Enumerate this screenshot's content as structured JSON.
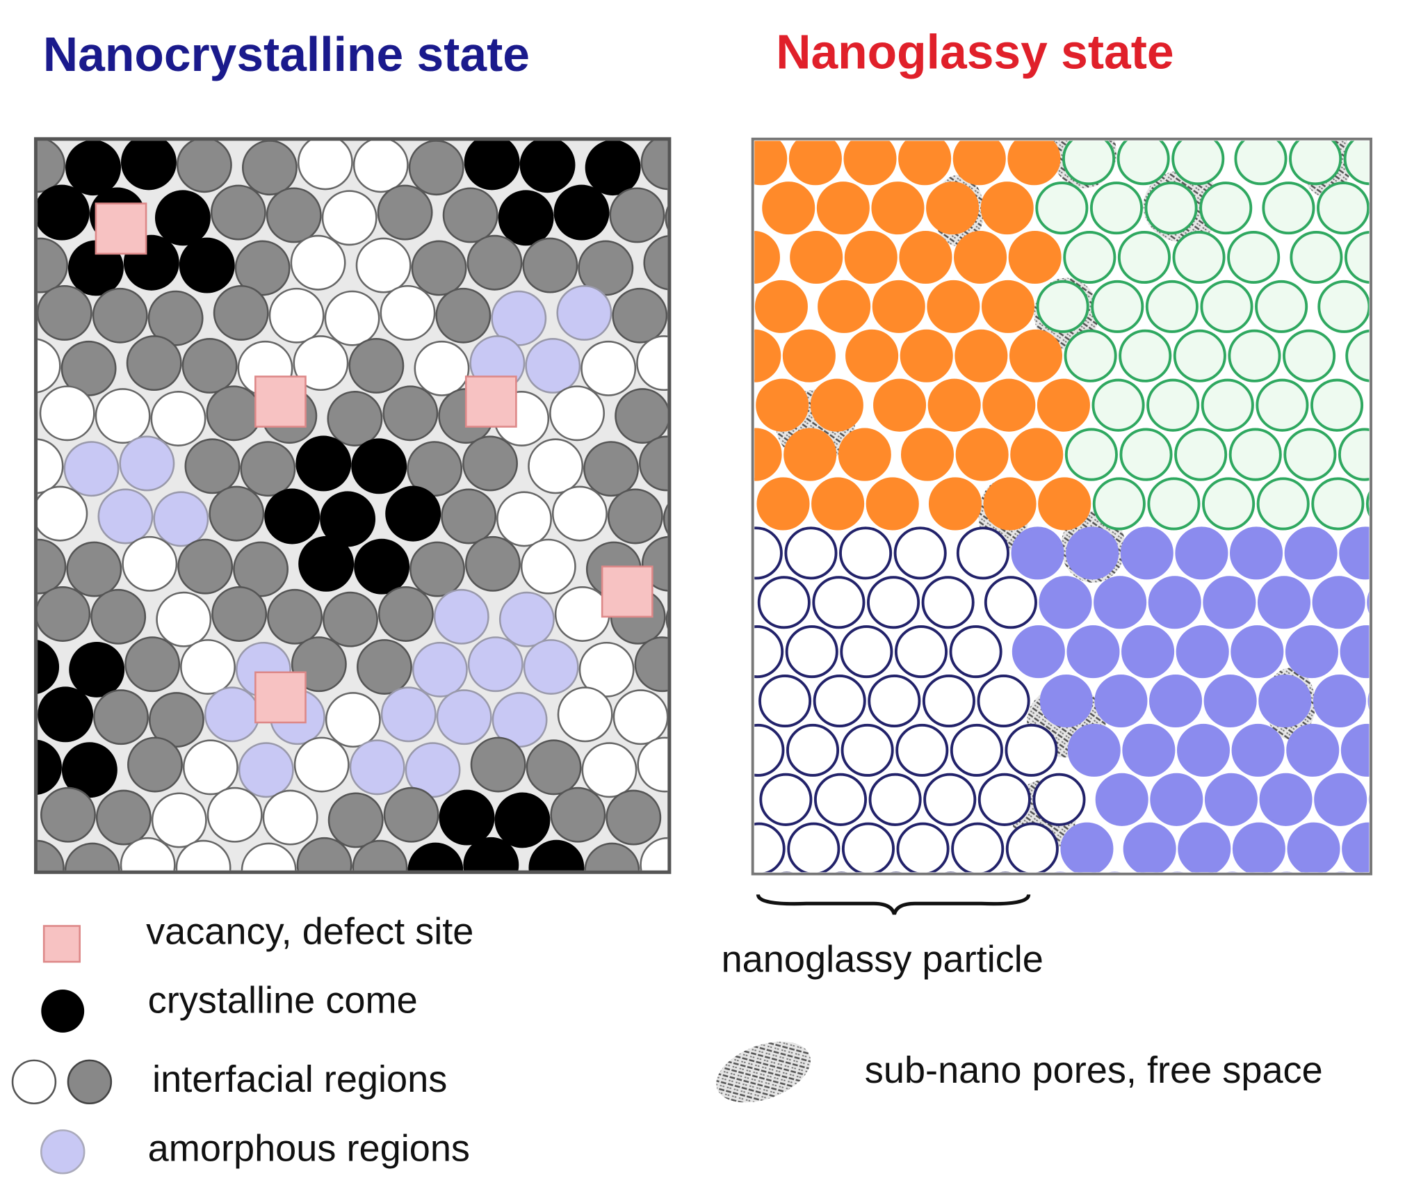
{
  "panels": [
    {
      "title": "Nanocrystalline state"
    },
    {
      "title": "Nanoglassy state"
    }
  ],
  "legend_left": [
    "vacancy, defect site",
    "crystalline come",
    "interfacial regions",
    "amorphous regions"
  ],
  "legend_right": [
    "nanoglassy particle",
    "sub-nano pores, free space"
  ]
}
